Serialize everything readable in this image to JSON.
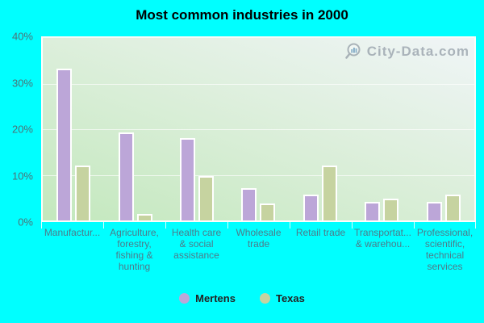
{
  "title": "Most common industries in 2000",
  "watermark": {
    "text": "City-Data.com",
    "icon": "magnifier-with-bars"
  },
  "colors": {
    "background": "#00ffff",
    "mertens_bar": "#bca6d8",
    "texas_bar": "#c6d3a0",
    "bar_border": "#ffffff",
    "plot_gradient_bottom_left": "#c3e8bd",
    "plot_gradient_top_right": "#f0f5f7",
    "axis_label": "#4d7b8a",
    "legend_text": "#222222",
    "watermark_text": "#9aa4ad"
  },
  "chart_data": {
    "type": "bar",
    "title": "Most common industries in 2000",
    "categories": [
      "Manufactur...",
      "Agriculture,\nforestry,\nfishing &\nhunting",
      "Health care\n& social\nassistance",
      "Wholesale\ntrade",
      "Retail trade",
      "Transportat...\n& warehou...",
      "Professional,\nscientific,\ntechnical\nservices"
    ],
    "series": [
      {
        "name": "Mertens",
        "color": "#bca6d8",
        "values": [
          33.3,
          19.3,
          18.0,
          7.0,
          5.6,
          4.1,
          4.1
        ]
      },
      {
        "name": "Texas",
        "color": "#c6d3a0",
        "values": [
          12.0,
          1.4,
          9.7,
          3.8,
          12.0,
          4.7,
          5.6
        ]
      }
    ],
    "ylim": [
      0,
      40
    ],
    "ytick_values": [
      0,
      10,
      20,
      30,
      40
    ],
    "ytick_labels": [
      "0%",
      "10%",
      "20%",
      "30%",
      "40%"
    ],
    "grid": true,
    "legend_position": "bottom"
  },
  "legend": {
    "items": [
      {
        "label": "Mertens",
        "color": "#bca6d8"
      },
      {
        "label": "Texas",
        "color": "#c6d3a0"
      }
    ]
  }
}
